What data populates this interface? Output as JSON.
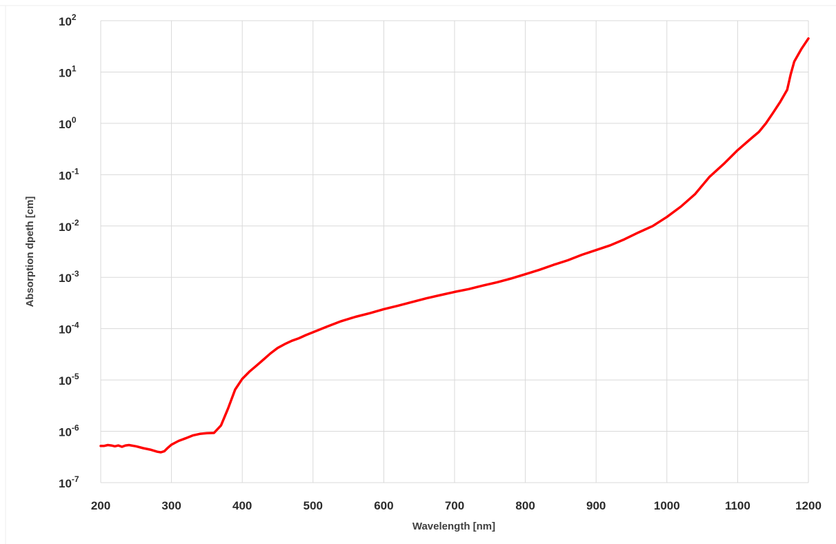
{
  "chart_data": {
    "type": "line",
    "title": "",
    "xlabel": "Wavelength [nm]",
    "ylabel": "Absorption dpeth [cm]",
    "xlim": [
      200,
      1200
    ],
    "x_ticks": [
      200,
      300,
      400,
      500,
      600,
      700,
      800,
      900,
      1000,
      1100,
      1200
    ],
    "x_tick_labels": [
      "200",
      "300",
      "400",
      "500",
      "600",
      "700",
      "800",
      "900",
      "1000",
      "1100",
      "1200"
    ],
    "y_scale": "log",
    "ylim": [
      1e-07,
      100
    ],
    "y_tick_labels": [
      {
        "base": "10",
        "exp": "2"
      },
      {
        "base": "10",
        "exp": "1"
      },
      {
        "base": "10",
        "exp": "0"
      },
      {
        "base": "10",
        "exp": "-1"
      },
      {
        "base": "10",
        "exp": "-2"
      },
      {
        "base": "10",
        "exp": "-3"
      },
      {
        "base": "10",
        "exp": "-4"
      },
      {
        "base": "10",
        "exp": "-5"
      },
      {
        "base": "10",
        "exp": "-6"
      },
      {
        "base": "10",
        "exp": "-7"
      }
    ],
    "y_ticks": [
      100,
      10,
      1,
      0.1,
      0.01,
      0.001,
      0.0001,
      1e-05,
      1e-06,
      1e-07
    ],
    "grid": true,
    "legend": "none",
    "series": [
      {
        "color": "#ff0000",
        "x": [
          200,
          205,
          210,
          215,
          220,
          225,
          230,
          235,
          240,
          250,
          260,
          270,
          280,
          285,
          290,
          295,
          300,
          310,
          320,
          330,
          340,
          350,
          360,
          370,
          380,
          390,
          400,
          410,
          420,
          430,
          440,
          450,
          460,
          470,
          480,
          490,
          500,
          520,
          540,
          560,
          580,
          600,
          620,
          640,
          660,
          680,
          700,
          720,
          740,
          760,
          780,
          800,
          820,
          840,
          860,
          880,
          900,
          920,
          940,
          960,
          980,
          1000,
          1020,
          1040,
          1060,
          1080,
          1100,
          1120,
          1130,
          1140,
          1150,
          1160,
          1170,
          1175,
          1180,
          1190,
          1200
        ],
        "y": [
          5.2e-07,
          5.2e-07,
          5.4e-07,
          5.3e-07,
          5.1e-07,
          5.3e-07,
          5e-07,
          5.3e-07,
          5.4e-07,
          5.1e-07,
          4.7e-07,
          4.4e-07,
          4e-07,
          3.9e-07,
          4.1e-07,
          4.8e-07,
          5.5e-07,
          6.5e-07,
          7.3e-07,
          8.3e-07,
          8.9e-07,
          9.2e-07,
          9.3e-07,
          1.3e-06,
          2.8e-06,
          6.5e-06,
          1.05e-05,
          1.45e-05,
          1.9e-05,
          2.5e-05,
          3.3e-05,
          4.2e-05,
          5e-05,
          5.8e-05,
          6.5e-05,
          7.5e-05,
          8.5e-05,
          0.00011,
          0.00014,
          0.00017,
          0.0002,
          0.00024,
          0.00028,
          0.00033,
          0.00039,
          0.00045,
          0.00052,
          0.00059,
          0.00069,
          0.0008,
          0.00095,
          0.00115,
          0.0014,
          0.00175,
          0.00215,
          0.00275,
          0.0034,
          0.0042,
          0.0055,
          0.0075,
          0.01,
          0.015,
          0.024,
          0.042,
          0.09,
          0.16,
          0.3,
          0.52,
          0.68,
          1.0,
          1.6,
          2.6,
          4.5,
          9.0,
          16.0,
          28.0,
          45.0
        ]
      }
    ]
  }
}
